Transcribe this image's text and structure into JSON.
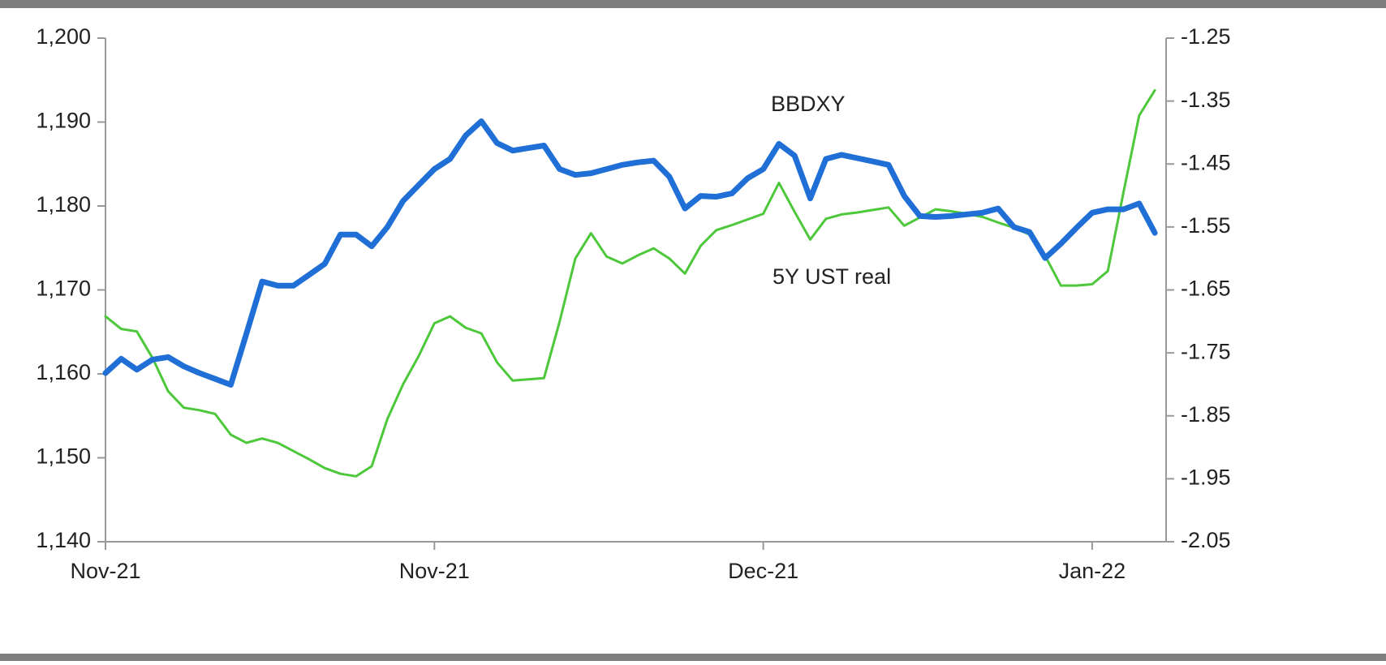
{
  "chart_data": {
    "type": "line",
    "categories": [
      "Nov-21",
      null,
      null,
      null,
      null,
      null,
      null,
      null,
      null,
      null,
      null,
      null,
      null,
      null,
      null,
      null,
      null,
      null,
      null,
      null,
      null,
      "Nov-21",
      null,
      null,
      null,
      null,
      null,
      null,
      null,
      null,
      null,
      null,
      null,
      null,
      null,
      null,
      null,
      null,
      null,
      null,
      null,
      null,
      "Dec-21",
      null,
      null,
      null,
      null,
      null,
      null,
      null,
      null,
      null,
      null,
      null,
      null,
      null,
      null,
      null,
      null,
      null,
      null,
      null,
      null,
      "Jan-22",
      null,
      null,
      null,
      null
    ],
    "series": [
      {
        "name": "BBDXY",
        "color": "#1f6fd6",
        "axis": "y",
        "values": [
          1160.1,
          1161.8,
          1160.5,
          1161.7,
          1162.0,
          1160.9,
          1160.1,
          1159.4,
          1158.7,
          1164.8,
          1171.0,
          1170.5,
          1170.5,
          1171.8,
          1173.1,
          1176.6,
          1176.6,
          1175.2,
          1177.5,
          1180.6,
          1182.5,
          1184.4,
          1185.6,
          1188.4,
          1190.1,
          1187.5,
          1186.6,
          1186.9,
          1187.2,
          1184.4,
          1183.7,
          1183.9,
          1184.4,
          1184.9,
          1185.2,
          1185.4,
          1183.5,
          1179.7,
          1181.2,
          1181.1,
          1181.5,
          1183.3,
          1184.4,
          1187.4,
          1186.0,
          1180.9,
          1185.6,
          1186.1,
          1185.7,
          1185.3,
          1184.9,
          1181.2,
          1178.8,
          1178.7,
          1178.8,
          1179.0,
          1179.2,
          1179.7,
          1177.5,
          1176.9,
          1173.8,
          1175.5,
          1177.4,
          1179.2,
          1179.6,
          1179.6,
          1180.3,
          1176.8
        ]
      },
      {
        "name": "5Y UST real",
        "color": "#4cc83a",
        "axis": "y2",
        "values": [
          -1.692,
          -1.712,
          -1.716,
          -1.758,
          -1.811,
          -1.837,
          -1.841,
          -1.847,
          -1.88,
          -1.893,
          -1.886,
          -1.893,
          -1.906,
          -1.919,
          -1.933,
          -1.942,
          -1.946,
          -1.93,
          -1.855,
          -1.8,
          -1.755,
          -1.703,
          -1.692,
          -1.71,
          -1.719,
          -1.765,
          -1.794,
          -1.792,
          -1.79,
          -1.7,
          -1.6,
          -1.56,
          -1.597,
          -1.608,
          -1.595,
          -1.584,
          -1.6,
          -1.624,
          -1.58,
          -1.555,
          -1.547,
          -1.538,
          -1.529,
          -1.48,
          -1.526,
          -1.57,
          -1.537,
          -1.53,
          -1.527,
          -1.523,
          -1.519,
          -1.548,
          -1.535,
          -1.522,
          -1.525,
          -1.529,
          -1.534,
          -1.543,
          -1.551,
          -1.562,
          -1.596,
          -1.643,
          -1.643,
          -1.641,
          -1.62,
          -1.495,
          -1.373,
          -1.333
        ]
      }
    ],
    "ylim": [
      1140,
      1200
    ],
    "yticks": [
      {
        "value": 1140,
        "label": "1,140"
      },
      {
        "value": 1150,
        "label": "1,150"
      },
      {
        "value": 1160,
        "label": "1,160"
      },
      {
        "value": 1170,
        "label": "1,170"
      },
      {
        "value": 1180,
        "label": "1,180"
      },
      {
        "value": 1190,
        "label": "1,190"
      },
      {
        "value": 1200,
        "label": "1,200"
      }
    ],
    "y2lim": [
      -2.05,
      -1.25
    ],
    "y2ticks": [
      -2.05,
      -1.95,
      -1.85,
      -1.75,
      -1.65,
      -1.55,
      -1.45,
      -1.35,
      -1.25
    ],
    "grid": false
  }
}
